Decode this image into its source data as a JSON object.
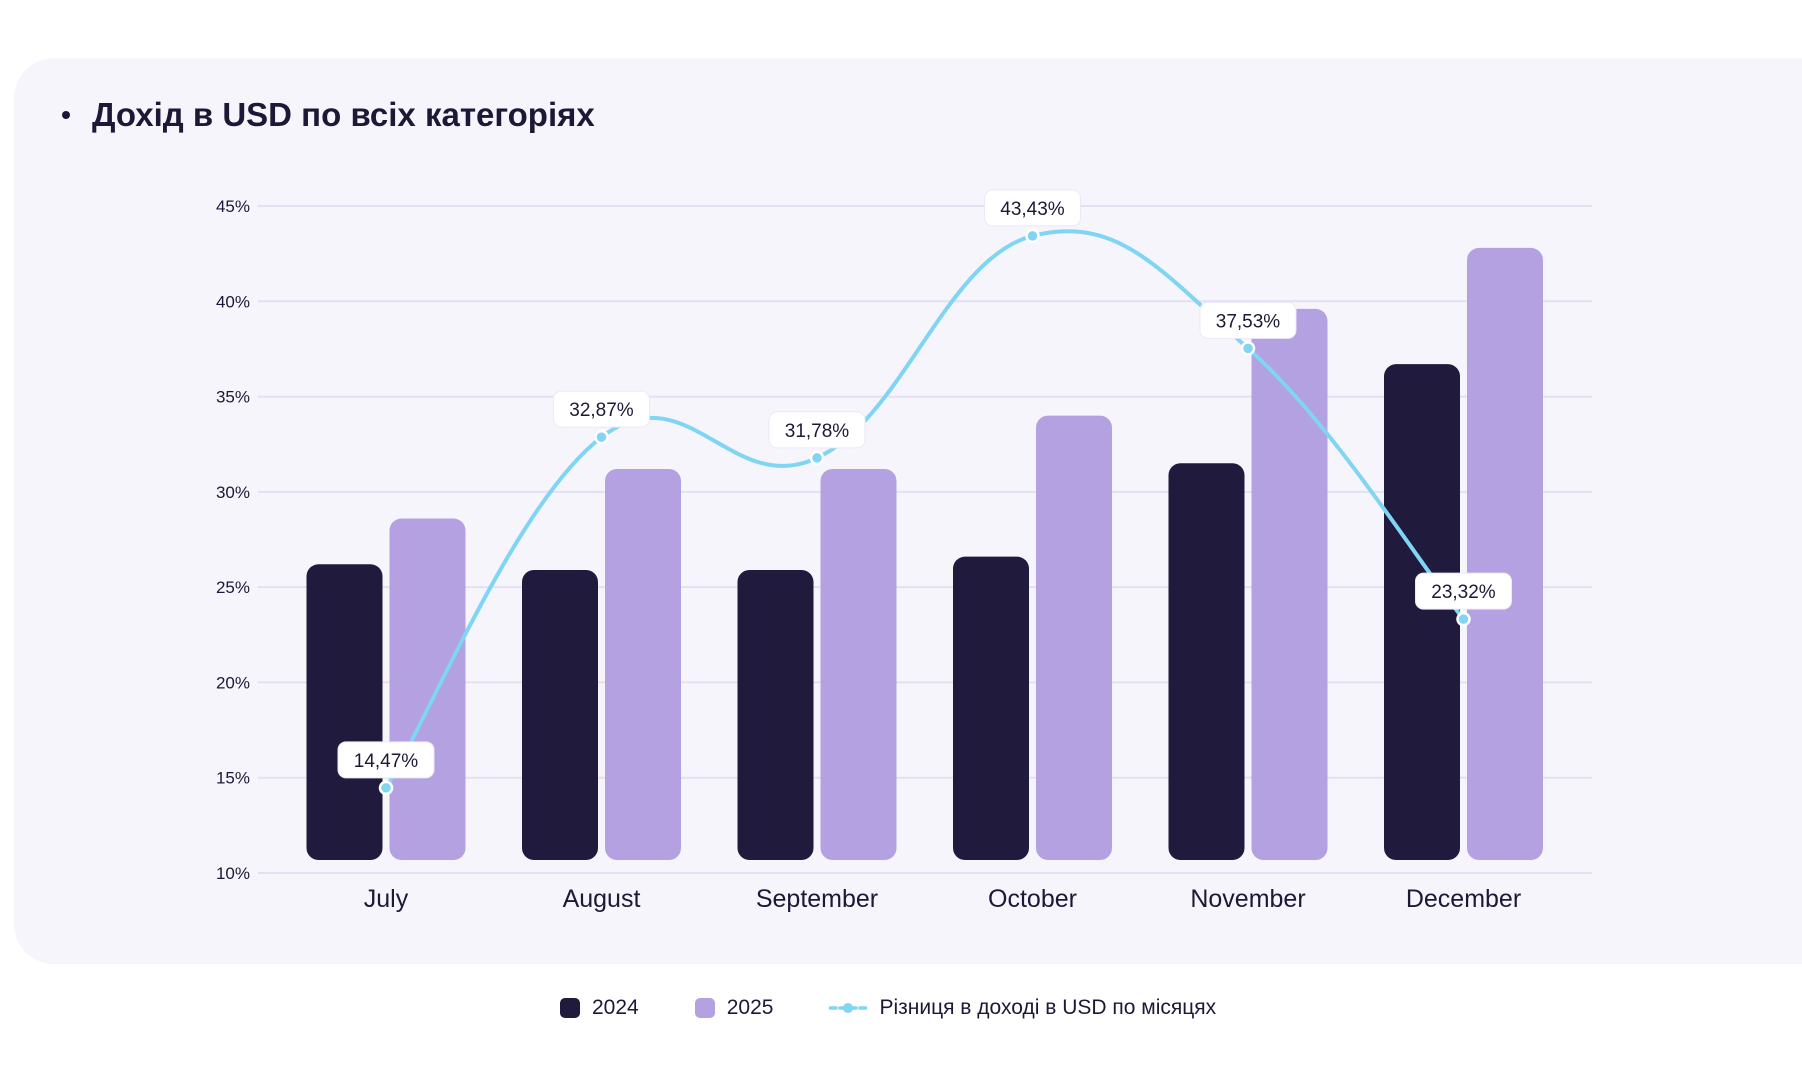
{
  "title": "Дохід в USD по всіх категоріях",
  "colors": {
    "series_2024": "#201a3c",
    "series_2025": "#b3a1e2",
    "line": "#80d4f4",
    "grid": "#e4e0f1",
    "text": "#1c1836"
  },
  "chart_data": {
    "type": "bar",
    "categories": [
      "July",
      "August",
      "September",
      "October",
      "November",
      "December"
    ],
    "series": [
      {
        "name": "2024",
        "values": [
          26.2,
          25.9,
          25.9,
          26.6,
          31.5,
          36.7
        ]
      },
      {
        "name": "2025",
        "values": [
          28.6,
          31.2,
          31.2,
          34.0,
          39.6,
          42.8
        ]
      }
    ],
    "line_series": {
      "name": "Різниця в доході в USD по місяцях",
      "values": [
        14.47,
        32.87,
        31.78,
        43.43,
        37.53,
        23.32
      ],
      "labels": [
        "14,47%",
        "32,87%",
        "31,78%",
        "43,43%",
        "37,53%",
        "23,32%"
      ]
    },
    "yticks": [
      10,
      15,
      20,
      25,
      30,
      35,
      40,
      45
    ],
    "ytick_labels": [
      "10%",
      "15%",
      "20%",
      "25%",
      "30%",
      "35%",
      "40%",
      "45%"
    ],
    "ylim": [
      10,
      45
    ],
    "grid": true,
    "legend_position": "bottom-center"
  }
}
